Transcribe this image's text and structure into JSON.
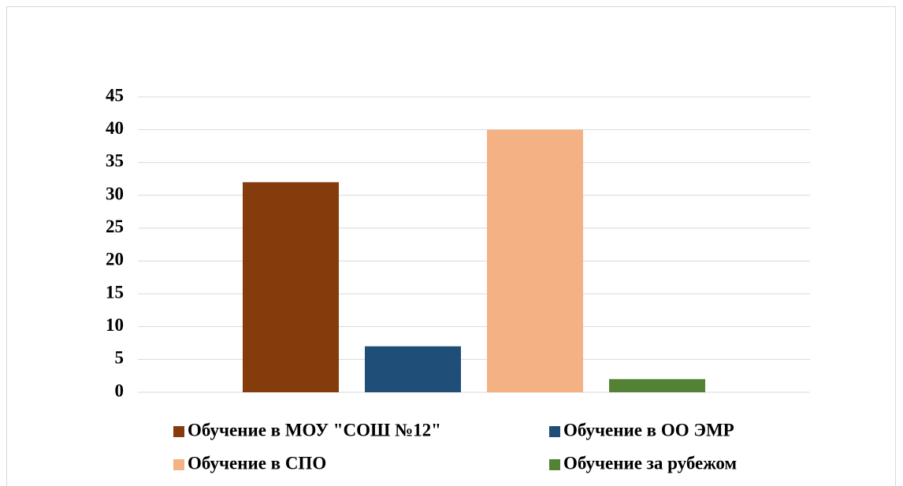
{
  "chart_data": {
    "type": "bar",
    "categories": [
      null
    ],
    "series": [
      {
        "name": "Обучение в МОУ \"СОШ №12\"",
        "color": "#843c0c",
        "values": [
          32
        ]
      },
      {
        "name": "Обучение в ОО ЭМР",
        "color": "#1f4e79",
        "values": [
          7
        ]
      },
      {
        "name": "Обучение в СПО",
        "color": "#f4b183",
        "values": [
          40
        ]
      },
      {
        "name": "Обучение за рубежом",
        "color": "#548235",
        "values": [
          2
        ]
      }
    ],
    "ylim": [
      0,
      45
    ],
    "yticks": [
      0,
      5,
      10,
      15,
      20,
      25,
      30,
      35,
      40,
      45
    ],
    "grid": true,
    "legend": "bottom"
  }
}
